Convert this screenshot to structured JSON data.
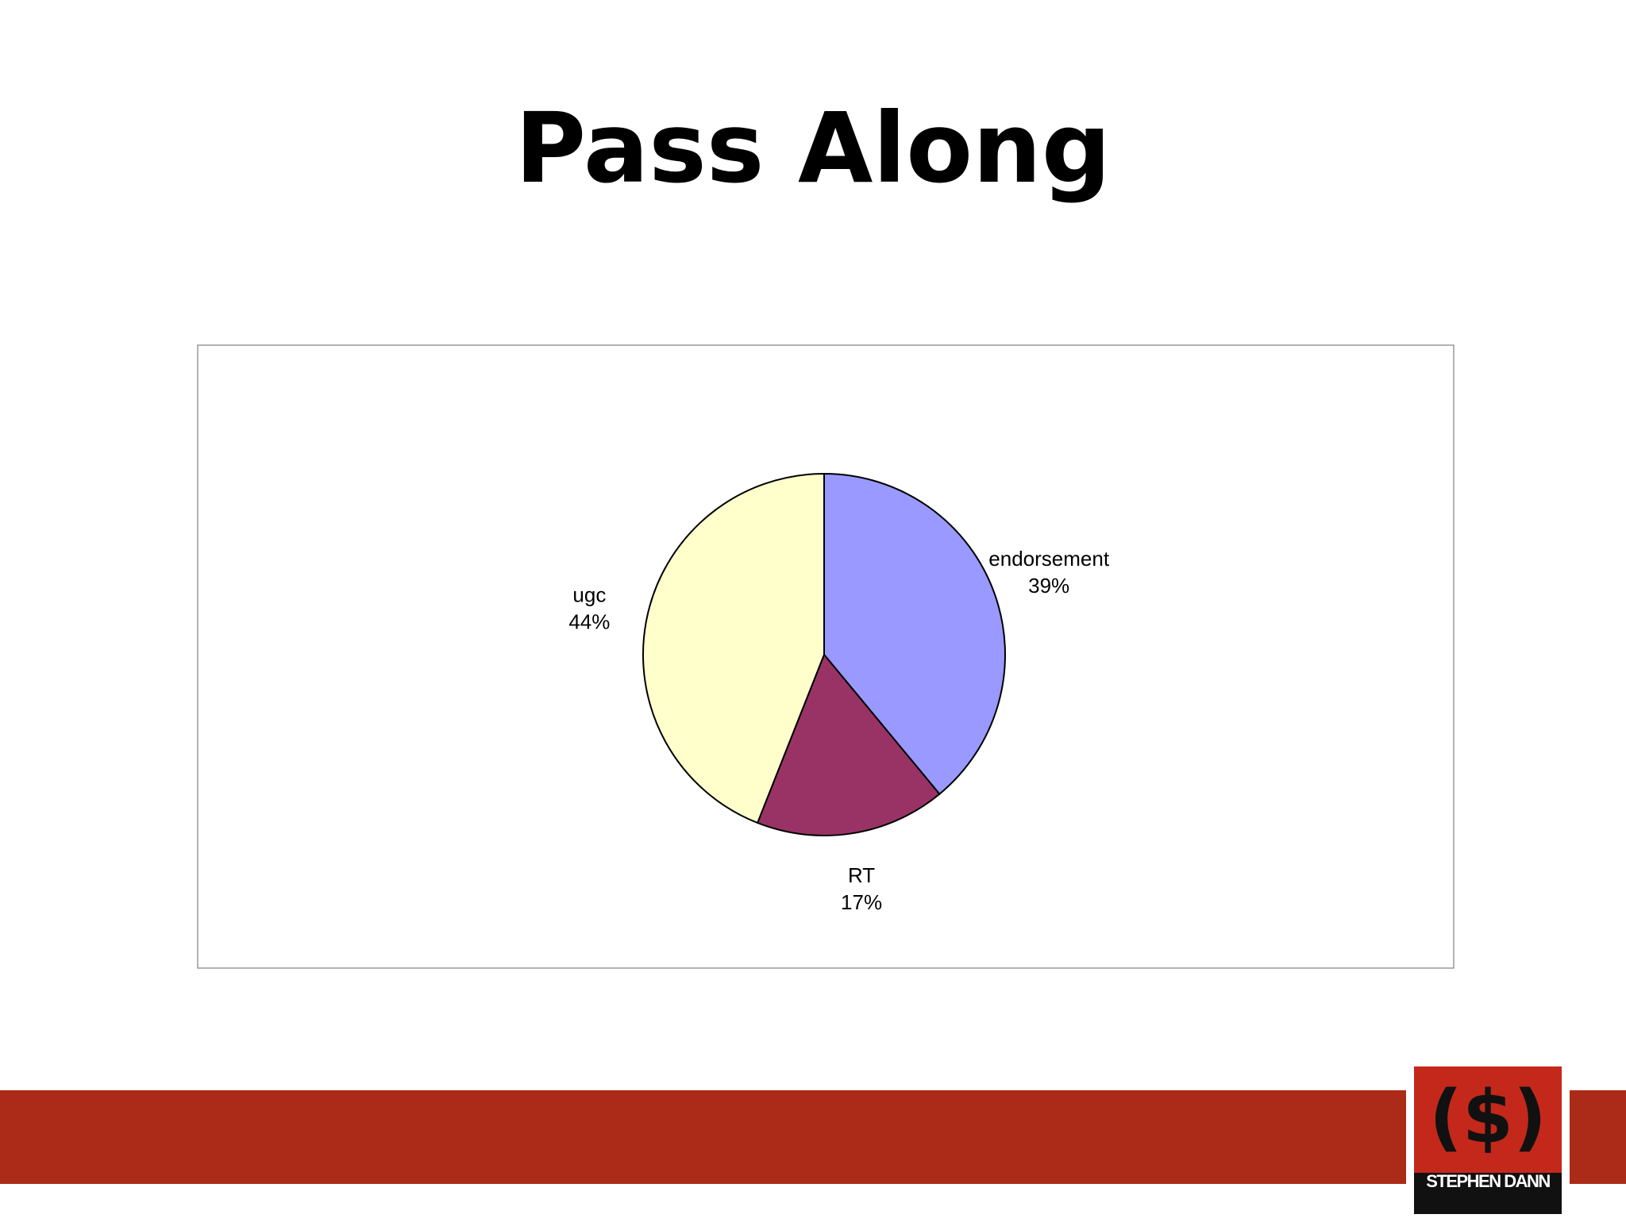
{
  "chart_data": {
    "type": "pie",
    "title": "Pass Along",
    "categories": [
      "endorsement",
      "RT",
      "ugc"
    ],
    "values": [
      39,
      17,
      44
    ],
    "value_labels": [
      "39%",
      "17%",
      "44%"
    ],
    "colors": [
      "#9999ff",
      "#993366",
      "#ffffcc"
    ],
    "start_angle": 0,
    "direction": "clockwise"
  },
  "logo": {
    "symbol": "($)",
    "text": "STEPHEN DANN"
  }
}
